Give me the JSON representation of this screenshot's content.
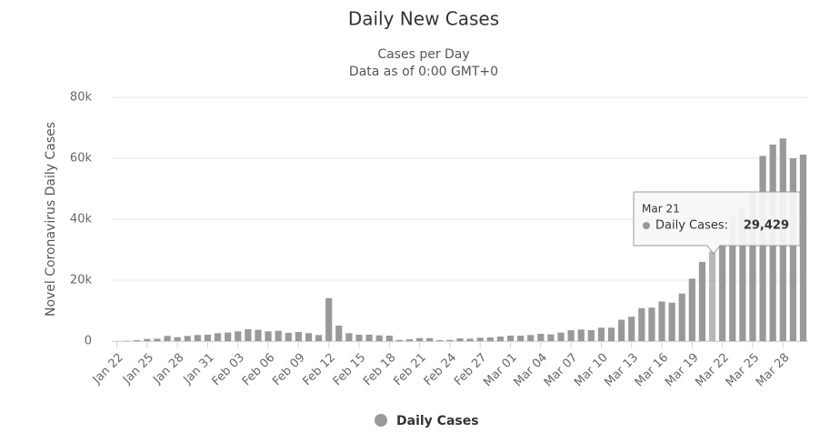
{
  "chart_data": {
    "type": "bar",
    "title": "Daily New Cases",
    "subtitle": [
      "Cases per Day",
      "Data as of 0:00 GMT+0"
    ],
    "y_axis_label": "Novel Coronavirus Daily Cases",
    "categories": [
      "Jan 22",
      null,
      null,
      "Jan 25",
      null,
      null,
      "Jan 28",
      null,
      null,
      "Jan 31",
      null,
      null,
      "Feb 03",
      null,
      null,
      "Feb 06",
      null,
      null,
      "Feb 09",
      null,
      null,
      "Feb 12",
      null,
      null,
      "Feb 15",
      null,
      null,
      "Feb 18",
      null,
      null,
      "Feb 21",
      null,
      null,
      "Feb 24",
      null,
      null,
      "Feb 27",
      null,
      null,
      "Mar 01",
      null,
      null,
      "Mar 04",
      null,
      null,
      "Mar 07",
      null,
      null,
      "Mar 10",
      null,
      null,
      "Mar 13",
      null,
      null,
      "Mar 16",
      null,
      null,
      "Mar 19",
      null,
      null,
      "Mar 22",
      null,
      null,
      "Mar 25",
      null,
      null,
      "Mar 28",
      null,
      null
    ],
    "series": [
      {
        "name": "Daily Cases",
        "color": "#999999",
        "values": [
          0,
          100,
          300,
          700,
          800,
          1700,
          1300,
          1700,
          2000,
          2100,
          2600,
          2800,
          3200,
          3900,
          3700,
          3200,
          3400,
          2700,
          3000,
          2600,
          2000,
          14100,
          5100,
          2600,
          2100,
          2100,
          1900,
          1800,
          400,
          600,
          1000,
          1000,
          300,
          400,
          900,
          800,
          1100,
          1200,
          1500,
          1800,
          1800,
          2000,
          2400,
          2200,
          2800,
          3600,
          3800,
          3600,
          4400,
          4400,
          7000,
          8000,
          10800,
          11000,
          13000,
          12600,
          15600,
          20500,
          26000,
          29429,
          32000,
          41000,
          43500,
          48500,
          60800,
          64500,
          66500,
          60000,
          61200
        ]
      }
    ],
    "ylim": [
      0,
      80000
    ],
    "yticks": [
      0,
      {
        "value": 20000,
        "label": "20k"
      },
      {
        "value": 40000,
        "label": "40k"
      },
      {
        "value": 60000,
        "label": "60k"
      },
      {
        "value": 80000,
        "label": "80k"
      }
    ],
    "grid": true,
    "legend": "bottom",
    "tooltip": {
      "title": "Mar 21",
      "label": "Daily Cases:",
      "value": "29,429"
    }
  }
}
